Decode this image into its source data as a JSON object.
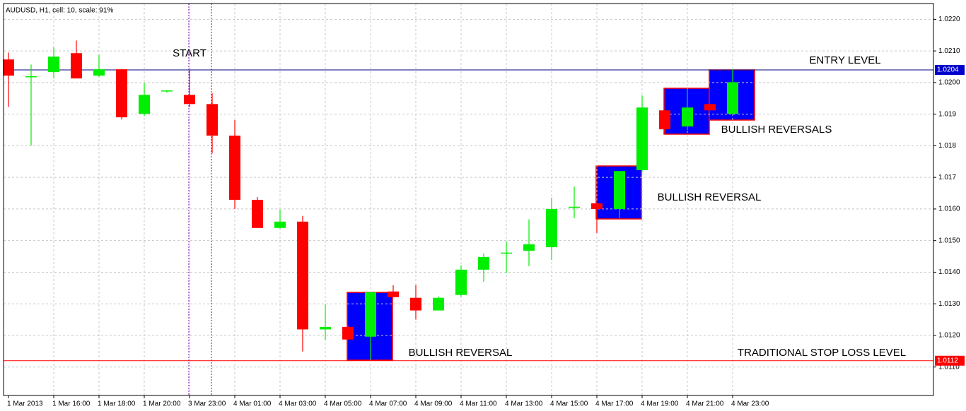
{
  "chart_data": {
    "type": "candlestick",
    "title": "AUDUSD, H1, cell: 10, scale: 91%",
    "categories": [
      "1 Mar 2013",
      null,
      "1 Mar 16:00",
      null,
      "1 Mar 18:00",
      null,
      "1 Mar 20:00",
      null,
      "3 Mar 23:00",
      null,
      "4 Mar 01:00",
      null,
      "4 Mar 03:00",
      null,
      "4 Mar 05:00",
      null,
      "4 Mar 07:00",
      null,
      "4 Mar 09:00",
      null,
      "4 Mar 11:00",
      null,
      "4 Mar 13:00",
      null,
      "4 Mar 15:00",
      null,
      "4 Mar 17:00",
      null,
      "4 Mar 19:00",
      null,
      "4 Mar 21:00",
      null,
      "4 Mar 23:00"
    ],
    "open": [
      1.02073,
      1.0202,
      1.02033,
      1.02093,
      1.02022,
      1.02042,
      1.01901,
      1.01972,
      1.01961,
      1.01932,
      1.01832,
      1.01629,
      1.0154,
      1.0156,
      1.01219,
      1.01227,
      1.01196,
      1.01339,
      1.01319,
      1.01279,
      1.01328,
      1.01408,
      1.0146,
      1.01468,
      1.01479,
      1.01604,
      1.01618,
      1.016,
      1.01723,
      1.01912,
      1.01861,
      1.01932,
      1.01901
    ],
    "high": [
      1.02095,
      1.02057,
      1.02111,
      1.02133,
      1.02088,
      1.02042,
      1.01999,
      1.01976,
      1.02039,
      1.01966,
      1.01881,
      1.01638,
      1.01598,
      1.01578,
      1.01299,
      1.01232,
      1.01337,
      1.01359,
      1.01359,
      1.01323,
      1.01422,
      1.01459,
      1.01497,
      1.01567,
      1.01636,
      1.01671,
      1.01618,
      1.0172,
      1.01959,
      1.01912,
      1.01981,
      1.01932,
      1.02042
    ],
    "low": [
      1.01923,
      1.01801,
      1.02013,
      1.02013,
      1.02017,
      1.01883,
      1.01894,
      1.01968,
      1.01923,
      1.01776,
      1.016,
      1.0154,
      1.01538,
      1.01149,
      1.01185,
      1.01185,
      1.01125,
      1.01321,
      1.0125,
      1.01279,
      1.01323,
      1.0137,
      1.01397,
      1.01419,
      1.01439,
      1.01571,
      1.01524,
      1.01571,
      1.01718,
      1.01841,
      1.0185,
      1.01912,
      1.01901
    ],
    "close": [
      1.02022,
      1.0202,
      1.02082,
      1.02013,
      1.02042,
      1.0189,
      1.01961,
      1.01975,
      1.01932,
      1.01832,
      1.01629,
      1.0154,
      1.0156,
      1.01219,
      1.01227,
      1.01187,
      1.01337,
      1.01321,
      1.01279,
      1.01319,
      1.01408,
      1.01448,
      1.01462,
      1.01488,
      1.016,
      1.01607,
      1.016,
      1.0172,
      1.01921,
      1.01852,
      1.01921,
      1.01912,
      1.02001
    ],
    "up_color": "#00ee00",
    "down_color": "#ff0000",
    "ylim": [
      1.0101,
      1.0225
    ],
    "yticks": [
      {
        "value": 1.022,
        "label": "1.0220"
      },
      {
        "value": 1.021,
        "label": "1.0210"
      },
      {
        "value": 1.02,
        "label": "1.0200"
      },
      1.019,
      1.018,
      1.017,
      {
        "value": 1.016,
        "label": "1.0160"
      },
      {
        "value": 1.015,
        "label": "1.0150"
      },
      {
        "value": 1.014,
        "label": "1.0140"
      },
      {
        "value": 1.013,
        "label": "1.0130"
      },
      {
        "value": 1.012,
        "label": "1.0120"
      },
      {
        "value": 1.011,
        "label": "1.0110"
      }
    ],
    "grid": true,
    "levels": [
      {
        "value": 1.0204,
        "color": "#000080",
        "label_bg": "#0000cc"
      },
      {
        "value": 1.0112,
        "color": "#ff0000",
        "label_bg": "#ff0000"
      }
    ],
    "annotations": [
      "START",
      "ENTRY LEVEL",
      "BULLISH REVERSALS",
      "BULLISH REVERSAL",
      "BULLISH REVERSAL",
      "TRADITIONAL STOP LOSS LEVEL"
    ]
  }
}
